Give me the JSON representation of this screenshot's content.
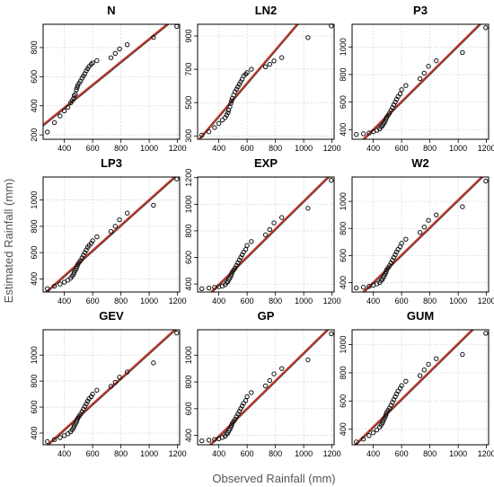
{
  "chart_data": {
    "type": "scatter",
    "xlabel": "Observed Rainfall (mm)",
    "ylabel": "Estimated Rainfall (mm)",
    "observed": [
      280,
      330,
      370,
      400,
      425,
      445,
      455,
      465,
      470,
      478,
      485,
      490,
      495,
      505,
      515,
      525,
      535,
      545,
      555,
      565,
      575,
      590,
      600,
      630,
      730,
      760,
      790,
      845,
      1030,
      1195
    ],
    "panels": [
      {
        "title": "N",
        "xticks": [
          400,
          600,
          800,
          1000,
          1200
        ],
        "yticks": [
          200,
          400,
          600,
          800
        ],
        "xlim": [
          250,
          1215
        ],
        "ylim": [
          170,
          960
        ],
        "line": [
          [
            250,
            270
          ],
          [
            1215,
            1030
          ]
        ],
        "estimated": [
          220,
          285,
          330,
          365,
          390,
          420,
          435,
          450,
          470,
          480,
          510,
          525,
          540,
          555,
          570,
          590,
          605,
          620,
          640,
          655,
          670,
          685,
          695,
          710,
          730,
          760,
          790,
          820,
          870,
          945
        ]
      },
      {
        "title": "LN2",
        "xticks": [
          400,
          600,
          800,
          1000,
          1200
        ],
        "yticks": [
          300,
          500,
          700,
          900
        ],
        "xlim": [
          250,
          1215
        ],
        "ylim": [
          280,
          970
        ],
        "line": [
          [
            250,
            270
          ],
          [
            1215,
            1230
          ]
        ],
        "estimated": [
          305,
          325,
          350,
          375,
          395,
          410,
          425,
          440,
          455,
          475,
          495,
          510,
          525,
          545,
          565,
          580,
          595,
          610,
          625,
          640,
          660,
          670,
          680,
          700,
          715,
          730,
          750,
          770,
          890,
          960
        ]
      },
      {
        "title": "P3",
        "xticks": [
          400,
          600,
          800,
          1000,
          1200
        ],
        "yticks": [
          400,
          600,
          800,
          1000
        ],
        "xlim": [
          250,
          1215
        ],
        "ylim": [
          330,
          1165
        ],
        "line": [
          [
            250,
            250
          ],
          [
            1215,
            1230
          ]
        ],
        "estimated": [
          365,
          370,
          375,
          385,
          395,
          405,
          420,
          430,
          440,
          450,
          465,
          480,
          490,
          505,
          520,
          540,
          560,
          580,
          600,
          620,
          640,
          660,
          690,
          720,
          770,
          810,
          860,
          900,
          960,
          1140
        ]
      },
      {
        "title": "LP3",
        "xticks": [
          400,
          600,
          800,
          1000,
          1200
        ],
        "yticks": [
          400,
          600,
          800,
          1000
        ],
        "xlim": [
          250,
          1215
        ],
        "ylim": [
          300,
          1175
        ],
        "line": [
          [
            250,
            280
          ],
          [
            1215,
            1210
          ]
        ],
        "estimated": [
          325,
          345,
          360,
          375,
          390,
          405,
          420,
          435,
          450,
          465,
          480,
          495,
          510,
          525,
          540,
          560,
          580,
          600,
          620,
          640,
          655,
          670,
          690,
          720,
          760,
          800,
          850,
          900,
          960,
          1160
        ]
      },
      {
        "title": "EXP",
        "xticks": [
          400,
          600,
          800,
          1000,
          1200
        ],
        "yticks": [
          400,
          600,
          800,
          1000,
          1200
        ],
        "xlim": [
          250,
          1215
        ],
        "ylim": [
          340,
          1205
        ],
        "line": [
          [
            250,
            240
          ],
          [
            1215,
            1250
          ]
        ],
        "estimated": [
          365,
          370,
          375,
          380,
          385,
          395,
          410,
          420,
          435,
          445,
          460,
          475,
          490,
          505,
          520,
          540,
          560,
          580,
          600,
          620,
          640,
          660,
          690,
          720,
          770,
          810,
          860,
          900,
          970,
          1180
        ]
      },
      {
        "title": "W2",
        "xticks": [
          400,
          600,
          800,
          1000,
          1200
        ],
        "yticks": [
          400,
          600,
          800,
          1000
        ],
        "xlim": [
          250,
          1215
        ],
        "ylim": [
          330,
          1180
        ],
        "line": [
          [
            250,
            250
          ],
          [
            1215,
            1230
          ]
        ],
        "estimated": [
          360,
          365,
          372,
          380,
          390,
          400,
          415,
          425,
          440,
          450,
          465,
          480,
          495,
          510,
          525,
          545,
          565,
          585,
          605,
          625,
          645,
          665,
          690,
          720,
          770,
          810,
          860,
          900,
          960,
          1150
        ]
      },
      {
        "title": "GEV",
        "xticks": [
          400,
          600,
          800,
          1000,
          1200
        ],
        "yticks": [
          400,
          600,
          800,
          1000
        ],
        "xlim": [
          250,
          1215
        ],
        "ylim": [
          310,
          1195
        ],
        "line": [
          [
            250,
            280
          ],
          [
            1215,
            1230
          ]
        ],
        "estimated": [
          335,
          350,
          365,
          380,
          395,
          410,
          425,
          440,
          455,
          470,
          485,
          500,
          515,
          530,
          545,
          565,
          585,
          605,
          625,
          645,
          665,
          680,
          700,
          730,
          760,
          790,
          830,
          870,
          940,
          1170
        ]
      },
      {
        "title": "GP",
        "xticks": [
          400,
          600,
          800,
          1000,
          1200
        ],
        "yticks": [
          400,
          600,
          800,
          1000
        ],
        "xlim": [
          250,
          1215
        ],
        "ylim": [
          330,
          1190
        ],
        "line": [
          [
            250,
            240
          ],
          [
            1215,
            1240
          ]
        ],
        "estimated": [
          360,
          365,
          370,
          375,
          385,
          395,
          410,
          420,
          435,
          445,
          460,
          475,
          490,
          505,
          520,
          540,
          560,
          580,
          600,
          620,
          640,
          660,
          690,
          720,
          770,
          810,
          860,
          900,
          965,
          1160
        ]
      },
      {
        "title": "GUM",
        "xticks": [
          400,
          600,
          800,
          1000,
          1200
        ],
        "yticks": [
          400,
          600,
          800,
          1000
        ],
        "xlim": [
          250,
          1215
        ],
        "ylim": [
          290,
          1105
        ],
        "line": [
          [
            250,
            270
          ],
          [
            1215,
            1220
          ]
        ],
        "estimated": [
          310,
          330,
          355,
          375,
          395,
          415,
          430,
          445,
          460,
          475,
          490,
          505,
          520,
          535,
          550,
          570,
          590,
          610,
          630,
          650,
          670,
          690,
          710,
          740,
          780,
          820,
          860,
          900,
          930,
          1080
        ]
      }
    ],
    "grid": true,
    "line_color": "#c0392b",
    "line_color_dark": "#2f2f2f",
    "marker": "open-circle"
  }
}
